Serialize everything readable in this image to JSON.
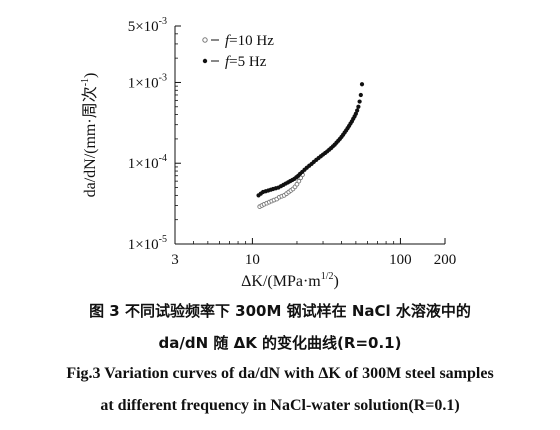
{
  "chart_data": {
    "type": "scatter",
    "x_scale": "log",
    "y_scale": "log",
    "xlim": [
      3,
      200
    ],
    "ylim": [
      1e-05,
      0.005
    ],
    "xlabel_prefix": "ΔK/(MPa·m",
    "xlabel_exp": "1/2",
    "xlabel_suffix": ")",
    "ylabel": "da/dN/(mm·周次",
    "ylabel_exp": "-1",
    "ylabel_suffix": ")",
    "x_ticks": [
      {
        "value": 3,
        "label": "3"
      },
      {
        "value": 10,
        "label": "10"
      },
      {
        "value": 100,
        "label": "100"
      },
      {
        "value": 200,
        "label": "200"
      }
    ],
    "y_ticks": [
      {
        "value": 1e-05,
        "base": "1×10",
        "exp": "-5"
      },
      {
        "value": 0.0001,
        "base": "1×10",
        "exp": "-4"
      },
      {
        "value": 0.001,
        "base": "1×10",
        "exp": "-3"
      },
      {
        "value": 0.005,
        "base": "5×10",
        "exp": "-3"
      }
    ],
    "legend_position": "top-left",
    "series": [
      {
        "name_italic": "f",
        "name_rest": "=10 Hz",
        "marker": "open-circle",
        "color": "#777777",
        "x": [
          11.2,
          11.6,
          12.0,
          12.5,
          13.0,
          13.5,
          14.0,
          14.6,
          15.2,
          15.8,
          16.4,
          17.0,
          17.6,
          18.2,
          18.8,
          19.4,
          20.0,
          20.6,
          21.2,
          21.8
        ],
        "y": [
          2.9e-05,
          3e-05,
          3.1e-05,
          3.2e-05,
          3.3e-05,
          3.4e-05,
          3.5e-05,
          3.6e-05,
          3.8e-05,
          3.9e-05,
          4e-05,
          4.2e-05,
          4.4e-05,
          4.6e-05,
          4.8e-05,
          5.1e-05,
          5.5e-05,
          6e-05,
          6.6e-05,
          7.2e-05
        ]
      },
      {
        "name_italic": "f",
        "name_rest": "=5 Hz",
        "marker": "filled-circle",
        "color": "#111111",
        "x": [
          11.0,
          11.4,
          11.8,
          12.3,
          12.8,
          13.3,
          13.8,
          14.4,
          15.0,
          15.6,
          16.2,
          16.8,
          17.4,
          18.0,
          18.6,
          19.2,
          19.8,
          20.4,
          21.0,
          21.7,
          22.5,
          23.3,
          24.2,
          25.1,
          26.0,
          27.0,
          28.0,
          29.0,
          30.0,
          31.0,
          32.0,
          33.0,
          34.0,
          35.0,
          36.0,
          37.0,
          38.0,
          39.0,
          40.0,
          41.0,
          42.0,
          43.0,
          44.0,
          45.0,
          46.0,
          47.0,
          48.0,
          49.0,
          50.0,
          51.0,
          52.0,
          53.0,
          54.0,
          55.0
        ],
        "y": [
          4e-05,
          4.2e-05,
          4.4e-05,
          4.5e-05,
          4.6e-05,
          4.7e-05,
          4.8e-05,
          4.9e-05,
          5e-05,
          5.2e-05,
          5.4e-05,
          5.6e-05,
          5.8e-05,
          6e-05,
          6.2e-05,
          6.4e-05,
          6.7e-05,
          7e-05,
          7.4e-05,
          7.8e-05,
          8.3e-05,
          8.8e-05,
          9.3e-05,
          9.8e-05,
          0.000104,
          0.00011,
          0.000116,
          0.000122,
          0.000128,
          0.000134,
          0.00014,
          0.000147,
          0.000154,
          0.000162,
          0.00017,
          0.00018,
          0.00019,
          0.0002,
          0.000212,
          0.000225,
          0.00024,
          0.000255,
          0.000272,
          0.00029,
          0.00031,
          0.00033,
          0.000355,
          0.00038,
          0.00041,
          0.00045,
          0.0005,
          0.00058,
          0.0007,
          0.00095
        ]
      }
    ]
  },
  "caption": {
    "cn_line1": "图 3   不同试验频率下 300M 钢试样在 NaCl 水溶液中的",
    "cn_line2": "da/dN 随 ΔK 的变化曲线(R=0.1)",
    "en_line1": "Fig.3   Variation curves of da/dN with ΔK of 300M steel samples",
    "en_line2": "at different frequency in NaCl-water solution(R=0.1)"
  }
}
